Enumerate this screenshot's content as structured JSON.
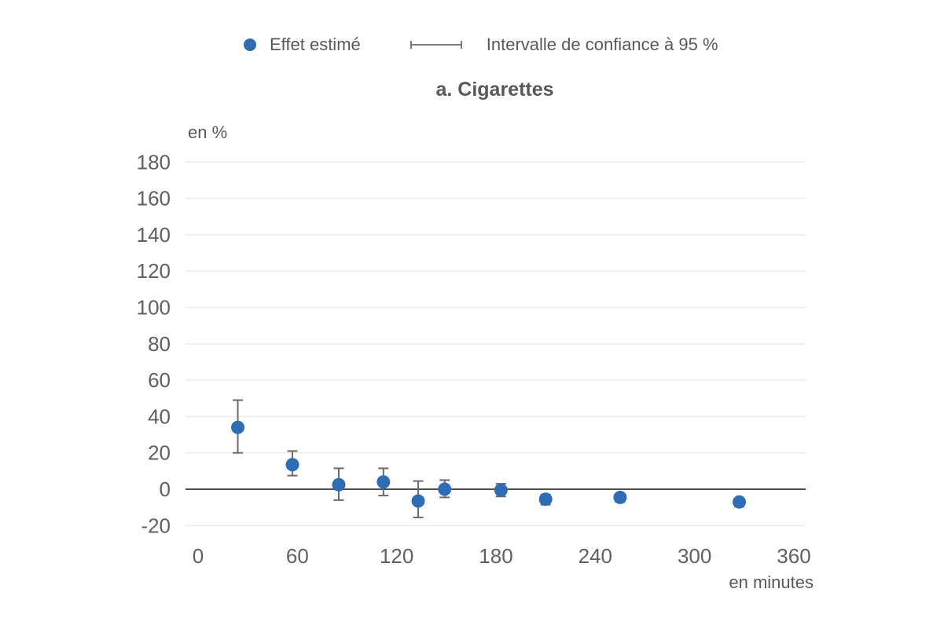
{
  "legend": {
    "estimate_label": "Effet estimé",
    "ci_label": "Intervalle de confiance à 95 %"
  },
  "colors": {
    "point": "#2e6cb4",
    "error_bar": "#6b6b6b",
    "grid": "#ededed",
    "zero_line": "#4f4f4f",
    "tick_text": "#616161",
    "label_text": "#595959"
  },
  "chart_data": {
    "type": "scatter",
    "title": "a. Cigarettes",
    "xlabel": "en minutes",
    "ylabel": "en %",
    "xlim": [
      0,
      360
    ],
    "ylim": [
      -20,
      180
    ],
    "x_ticks": [
      0,
      60,
      120,
      180,
      240,
      300,
      360
    ],
    "y_ticks": [
      180,
      160,
      140,
      120,
      100,
      80,
      60,
      40,
      20,
      0,
      -20
    ],
    "grid": true,
    "zero_line_at": 0,
    "legend_position": "top",
    "series": [
      {
        "name": "Effet estimé",
        "marker": "circle",
        "error_bar_label": "Intervalle de confiance à 95 %",
        "points": [
          {
            "x": 24,
            "y": 34,
            "ci_low": 20,
            "ci_high": 49
          },
          {
            "x": 57,
            "y": 13.5,
            "ci_low": 7.5,
            "ci_high": 21
          },
          {
            "x": 85,
            "y": 2.5,
            "ci_low": -6,
            "ci_high": 11.5
          },
          {
            "x": 112,
            "y": 4,
            "ci_low": -3.5,
            "ci_high": 11.5
          },
          {
            "x": 133,
            "y": -6.5,
            "ci_low": -15.5,
            "ci_high": 4.5
          },
          {
            "x": 149,
            "y": 0,
            "ci_low": -4.5,
            "ci_high": 5
          },
          {
            "x": 183,
            "y": -0.5,
            "ci_low": -4,
            "ci_high": 3
          },
          {
            "x": 210,
            "y": -5.5,
            "ci_low": -8.5,
            "ci_high": -3
          },
          {
            "x": 255,
            "y": -4.5,
            "ci_low": -7,
            "ci_high": -2.5
          },
          {
            "x": 327,
            "y": -7,
            "ci_low": -9.5,
            "ci_high": -5
          }
        ]
      }
    ]
  }
}
